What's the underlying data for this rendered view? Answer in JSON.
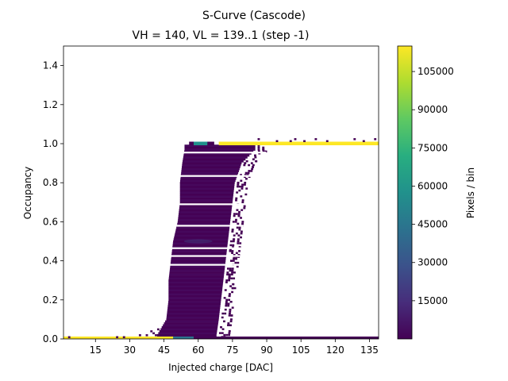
{
  "chart_data": {
    "type": "heatmap",
    "title": "S-Curve (Cascode)",
    "subtitle": "VH = 140, VL = 139..1 (step -1)",
    "xlabel": "Injected charge [DAC]",
    "ylabel": "Occupancy",
    "xlim": [
      1,
      139
    ],
    "ylim": [
      0,
      1.5
    ],
    "xticks": [
      15,
      30,
      45,
      60,
      75,
      90,
      105,
      120,
      135
    ],
    "yticks": [
      0.0,
      0.2,
      0.4,
      0.6,
      0.8,
      1.0,
      1.2,
      1.4
    ],
    "colorbar": {
      "label": "Pixels / bin",
      "range": [
        1,
        115000
      ],
      "ticks": [
        15000,
        30000,
        45000,
        60000,
        75000,
        90000,
        105000
      ],
      "colormap": "viridis"
    },
    "grid": false,
    "curve_bands": [
      {
        "occupancy": 1.0,
        "charge_start": 69,
        "charge_end": 139,
        "description": "full efficiency plateau, high counts"
      },
      {
        "occupancy": 0.0,
        "charge_start": 1,
        "charge_end": 55,
        "description": "zero occupancy baseline, high counts"
      }
    ],
    "transition_profile": [
      {
        "occupancy": 0.02,
        "charge_min": 42,
        "charge_max": 68
      },
      {
        "occupancy": 0.1,
        "charge_min": 46,
        "charge_max": 69
      },
      {
        "occupancy": 0.2,
        "charge_min": 47,
        "charge_max": 70
      },
      {
        "occupancy": 0.3,
        "charge_min": 47,
        "charge_max": 71
      },
      {
        "occupancy": 0.4,
        "charge_min": 48,
        "charge_max": 72
      },
      {
        "occupancy": 0.5,
        "charge_min": 49,
        "charge_max": 73
      },
      {
        "occupancy": 0.6,
        "charge_min": 51,
        "charge_max": 74
      },
      {
        "occupancy": 0.7,
        "charge_min": 52,
        "charge_max": 75
      },
      {
        "occupancy": 0.8,
        "charge_min": 52,
        "charge_max": 76
      },
      {
        "occupancy": 0.9,
        "charge_min": 53,
        "charge_max": 79
      },
      {
        "occupancy": 0.97,
        "charge_min": 54,
        "charge_max": 85
      }
    ]
  }
}
